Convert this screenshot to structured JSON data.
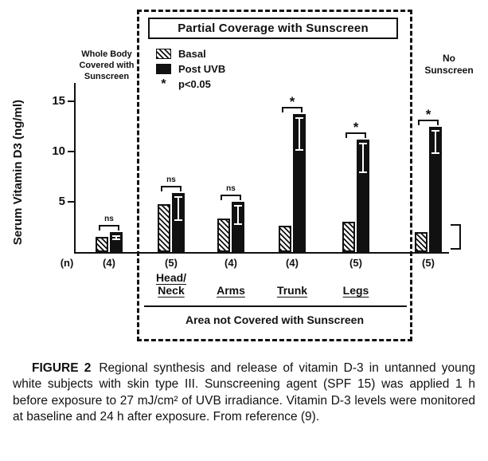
{
  "figure": {
    "title": "Partial Coverage with Sunscreen",
    "left_region_label": "Whole Body\nCovered with\nSunscreen",
    "right_region_label": "No\nSunscreen",
    "n_axis_label": "(n)",
    "legend": {
      "basal_label": "Basal",
      "post_label": "Post UVB",
      "sig_symbol": "*",
      "sig_label": "p<0.05"
    }
  },
  "chart_data": {
    "type": "bar",
    "title": "Partial Coverage with Sunscreen",
    "ylabel": "Serum Vitamin D3 (ng/ml)",
    "ylim": [
      0,
      16
    ],
    "yticks": [
      5,
      10,
      15
    ],
    "series": [
      {
        "name": "Basal"
      },
      {
        "name": "Post UVB"
      }
    ],
    "legend_note": "* p<0.05",
    "x_axis_group_label": "Area not Covered with Sunscreen",
    "categories": [
      "Whole Body Covered with Sunscreen",
      "Head/Neck",
      "Arms",
      "Trunk",
      "Legs",
      "No Sunscreen"
    ],
    "groups": [
      {
        "category": "Whole Body Covered with Sunscreen",
        "axis_label": "",
        "n": "(4)",
        "basal": 1.5,
        "post_uvb": 2.0,
        "post_err": 0.5,
        "significance": "ns"
      },
      {
        "category": "Head/Neck",
        "axis_label": "Head/\nNeck",
        "n": "(5)",
        "basal": 4.8,
        "post_uvb": 5.9,
        "post_err": 2.5,
        "significance": "ns"
      },
      {
        "category": "Arms",
        "axis_label": "Arms",
        "n": "(4)",
        "basal": 3.3,
        "post_uvb": 5.0,
        "post_err": 2.0,
        "significance": "ns"
      },
      {
        "category": "Trunk",
        "axis_label": "Trunk",
        "n": "(4)",
        "basal": 2.6,
        "post_uvb": 13.7,
        "post_err": 3.3,
        "significance": "*"
      },
      {
        "category": "Legs",
        "axis_label": "Legs",
        "n": "(5)",
        "basal": 3.0,
        "post_uvb": 11.2,
        "post_err": 3.0,
        "significance": "*"
      },
      {
        "category": "No Sunscreen",
        "axis_label": "",
        "n": "(5)",
        "basal": 2.0,
        "post_uvb": 12.5,
        "post_err": 2.4,
        "significance": "*"
      }
    ],
    "colors": {
      "basal_pattern": "diagonal-hatch",
      "post_uvb": "#111111",
      "axis": "#111111"
    }
  },
  "caption": {
    "label": "FIGURE 2",
    "text": "Regional synthesis and release of vitamin D-3 in untanned young white subjects with skin type III. Sunscreening agent (SPF 15) was applied 1 h before exposure to 27 mJ/cm² of UVB irradiance. Vitamin D-3 levels were monitored at baseline and 24 h after exposure. From reference (9)."
  }
}
